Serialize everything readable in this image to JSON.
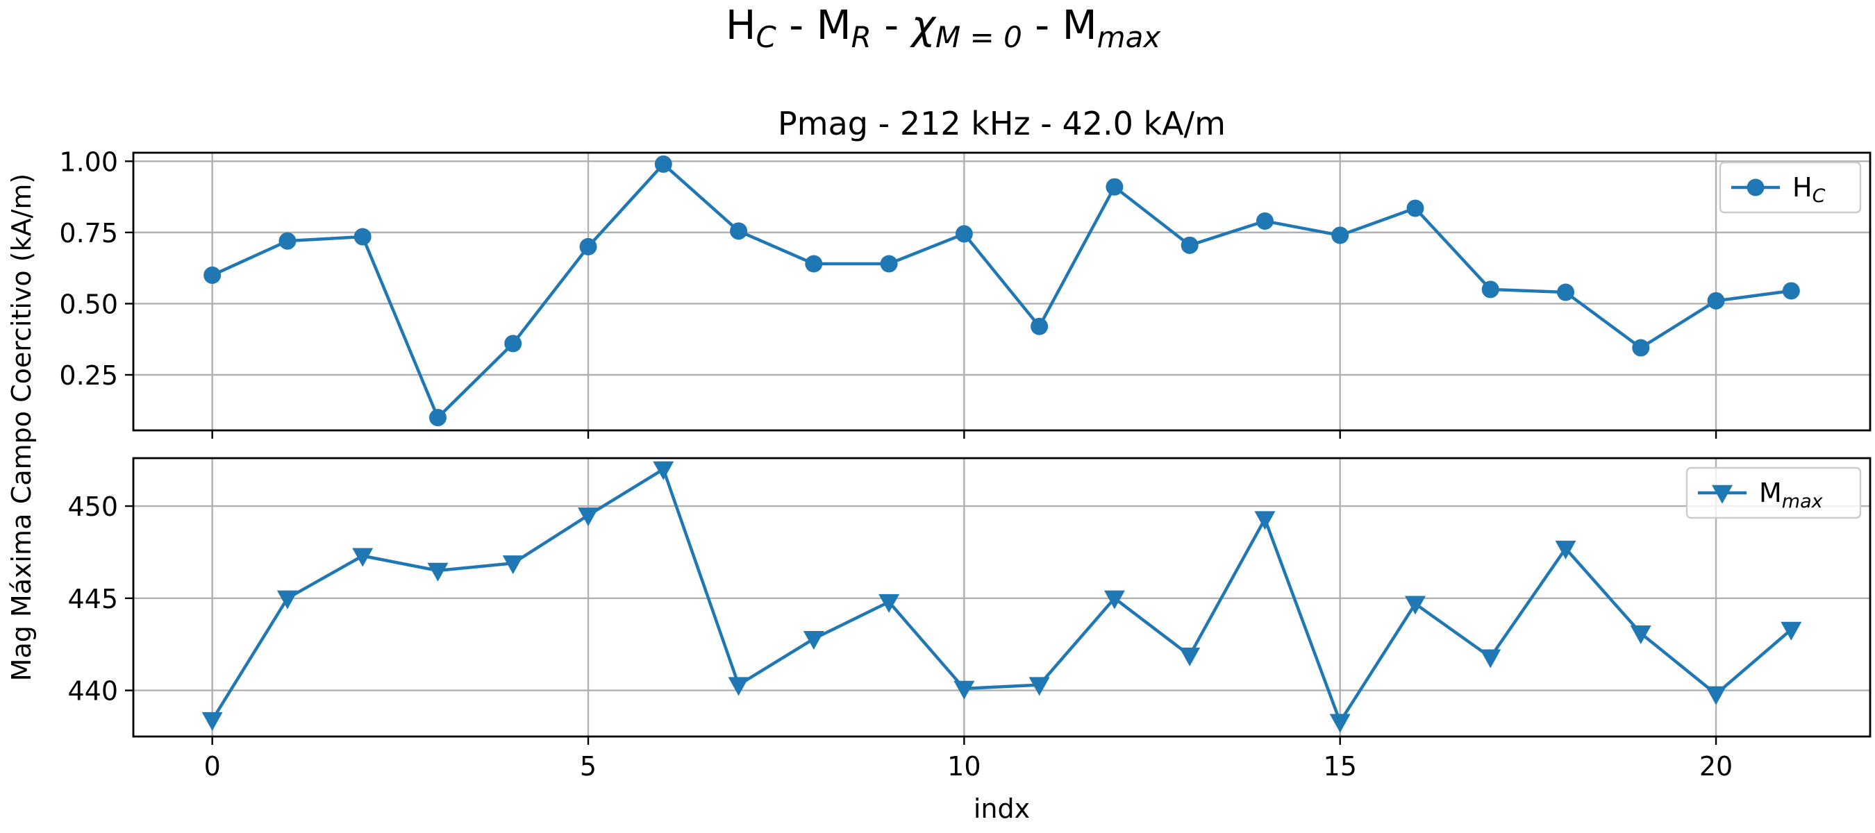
{
  "suptitle": {
    "parts": [
      {
        "t": "H"
      },
      {
        "t": "C",
        "sub": true
      },
      {
        "t": " - M"
      },
      {
        "t": "R",
        "sub": true
      },
      {
        "t": " - "
      },
      {
        "t": "χ",
        "ital": true
      },
      {
        "t": "M = 0",
        "sub": true
      },
      {
        "t": " - M"
      },
      {
        "t": "max",
        "sub": true
      }
    ]
  },
  "chart_data": [
    {
      "type": "line",
      "title": "Pmag - 212 kHz - 42.0 kA/m",
      "ylabel": "Campo Coercitivo (kA/m)",
      "xlabel": "",
      "xlim": [
        -1.05,
        22.05
      ],
      "ylim": [
        0.055,
        1.03
      ],
      "xticks": [
        0,
        5,
        10,
        15,
        20
      ],
      "yticks": [
        0.25,
        0.5,
        0.75,
        1.0
      ],
      "ytick_labels": [
        "0.25",
        "0.50",
        "0.75",
        "1.00"
      ],
      "grid": true,
      "legend_position": "top-right",
      "series": [
        {
          "name": "H_C",
          "legend": [
            {
              "t": "H"
            },
            {
              "t": "C",
              "sub": true
            }
          ],
          "color": "#1f77b4",
          "marker": "circle",
          "x": [
            0,
            1,
            2,
            3,
            4,
            5,
            6,
            7,
            8,
            9,
            10,
            11,
            12,
            13,
            14,
            15,
            16,
            17,
            18,
            19,
            20,
            21
          ],
          "y": [
            0.6,
            0.72,
            0.735,
            0.1,
            0.36,
            0.7,
            0.99,
            0.755,
            0.64,
            0.64,
            0.745,
            0.42,
            0.91,
            0.705,
            0.79,
            0.74,
            0.835,
            0.55,
            0.54,
            0.345,
            0.51,
            0.545
          ]
        }
      ]
    },
    {
      "type": "line",
      "title": "",
      "ylabel": "Mag Máxima",
      "xlabel": "indx",
      "xlim": [
        -1.05,
        22.05
      ],
      "ylim": [
        437.5,
        452.6
      ],
      "xticks": [
        0,
        5,
        10,
        15,
        20
      ],
      "yticks": [
        440,
        445,
        450
      ],
      "ytick_labels": [
        "440",
        "445",
        "450"
      ],
      "grid": true,
      "legend_position": "top-right",
      "series": [
        {
          "name": "M_max",
          "legend": [
            {
              "t": "M"
            },
            {
              "t": "max",
              "sub": true
            }
          ],
          "color": "#1f77b4",
          "marker": "triangle-down",
          "x": [
            0,
            1,
            2,
            3,
            4,
            5,
            6,
            7,
            8,
            9,
            10,
            11,
            12,
            13,
            14,
            15,
            16,
            17,
            18,
            19,
            20,
            21
          ],
          "y": [
            438.4,
            445.0,
            447.3,
            446.5,
            446.9,
            449.5,
            452.0,
            440.3,
            442.8,
            444.8,
            440.1,
            440.3,
            445.0,
            441.9,
            449.3,
            438.3,
            444.7,
            441.8,
            447.7,
            443.1,
            439.8,
            443.3
          ]
        }
      ]
    }
  ]
}
